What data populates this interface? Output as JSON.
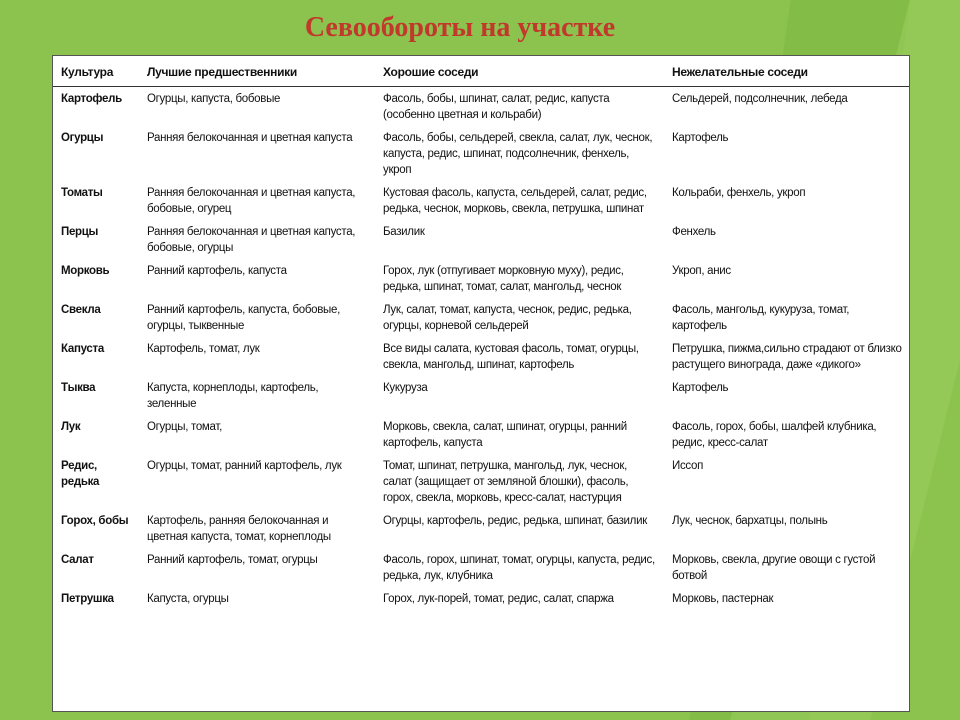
{
  "title": "Севообороты на участке",
  "table": {
    "headers": [
      "Культура",
      "Лучшие предшественники",
      "Хорошие соседи",
      "Нежелательные соседи"
    ],
    "rows": [
      [
        "Картофель",
        "Огурцы, капуста, бобовые",
        "Фасоль, бобы, шпинат, салат, редис, капуста (особенно цветная и кольраби)",
        "Сельдерей, подсолнечник, лебеда"
      ],
      [
        "Огурцы",
        "Ранняя белокочанная и цветная капуста",
        "Фасоль, бобы, сельдерей, свекла, салат, лук, чеснок, капуста, редис, шпинат, подсолнечник, фенхель, укроп",
        "Картофель"
      ],
      [
        "Томаты",
        "Ранняя белокочанная и цветная капуста, бобовые, огурец",
        "Кустовая фасоль, капуста, сельдерей, салат, редис, редька, чеснок, морковь, свекла, петрушка, шпинат",
        "Кольраби, фенхель, укроп"
      ],
      [
        "Перцы",
        "Ранняя белокочанная и цветная капуста, бобовые, огурцы",
        "Базилик",
        "Фенхель"
      ],
      [
        "Морковь",
        "Ранний картофель, капуста",
        "Горох, лук (отпугивает морковную муху), редис, редька, шпинат, томат, салат, мангольд, чеснок",
        "Укроп, анис"
      ],
      [
        "Свекла",
        "Ранний картофель, капуста, бобовые, огурцы, тыквенные",
        "Лук, салат, томат, капуста, чеснок, редис, редька, огурцы, корневой сельдерей",
        "Фасоль, мангольд, кукуруза, томат, картофель"
      ],
      [
        "Капуста",
        "Картофель, томат, лук",
        "Все виды салата, кустовая фасоль, томат, огурцы, свекла, мангольд, шпинат, картофель",
        "Петрушка, пижма,сильно страдают от близко растущего винограда, даже «дикого»"
      ],
      [
        "Тыква",
        "Капуста, корнеплоды, картофель, зеленные",
        "Кукуруза",
        "Картофель"
      ],
      [
        "Лук",
        "Огурцы, томат,",
        "Морковь, свекла, салат, шпинат, огурцы, ранний картофель, капуста",
        "Фасоль, горох, бобы, шалфей клубника, редис, кресс-салат"
      ],
      [
        "Редис, редька",
        "Огурцы, томат, ранний картофель, лук",
        "Томат, шпинат, петрушка, мангольд, лук, чеснок, салат (защищает от земляной блошки), фасоль, горох, свекла, морковь, кресс-салат, настурция",
        "Иссоп"
      ],
      [
        "Горох, бобы",
        "Картофель, ранняя белокочанная и цветная капуста, томат, корнеплоды",
        "Огурцы, картофель, редис, редька, шпинат, базилик",
        "Лук, чеснок, бархатцы, полынь"
      ],
      [
        "Салат",
        "Ранний картофель, томат, огурцы",
        "Фасоль, горох, шпинат, томат, огурцы, капуста, редис, редька, лук, клубника",
        "Морковь, свекла, другие овощи с густой ботвой"
      ],
      [
        "Петрушка",
        "Капуста, огурцы",
        "Горох, лук-порей, томат, редис, салат, спаржа",
        "Морковь, пастернак"
      ]
    ]
  },
  "colors": {
    "background": "#8cc34f",
    "title": "#c0392b"
  }
}
